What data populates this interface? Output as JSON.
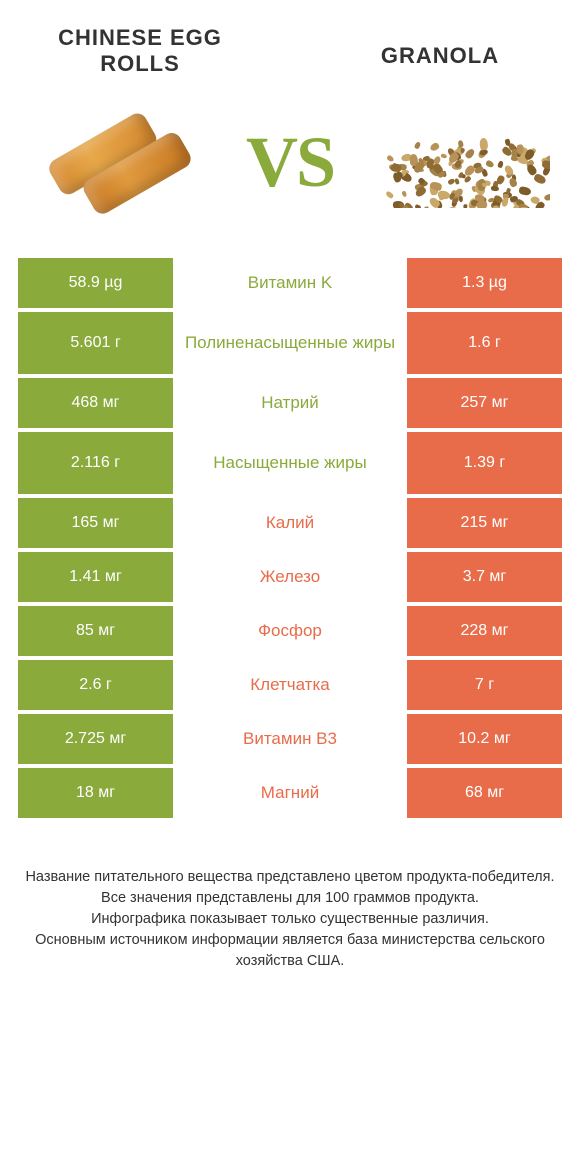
{
  "colors": {
    "green": "#8aaa3b",
    "orange": "#e86c4a",
    "text": "#333333",
    "bg": "#ffffff"
  },
  "header": {
    "left_title": "CHINESE EGG ROLLS",
    "right_title": "GRANOLA",
    "vs": "VS"
  },
  "rows": [
    {
      "left": "58.9 µg",
      "mid": "Витамин K",
      "right": "1.3 µg",
      "winner": "left",
      "tall": false
    },
    {
      "left": "5.601 г",
      "mid": "Полиненасыщенные жиры",
      "right": "1.6 г",
      "winner": "left",
      "tall": true
    },
    {
      "left": "468 мг",
      "mid": "Натрий",
      "right": "257 мг",
      "winner": "left",
      "tall": false
    },
    {
      "left": "2.116 г",
      "mid": "Насыщенные жиры",
      "right": "1.39 г",
      "winner": "left",
      "tall": true
    },
    {
      "left": "165 мг",
      "mid": "Калий",
      "right": "215 мг",
      "winner": "right",
      "tall": false
    },
    {
      "left": "1.41 мг",
      "mid": "Железо",
      "right": "3.7 мг",
      "winner": "right",
      "tall": false
    },
    {
      "left": "85 мг",
      "mid": "Фосфор",
      "right": "228 мг",
      "winner": "right",
      "tall": false
    },
    {
      "left": "2.6 г",
      "mid": "Клетчатка",
      "right": "7 г",
      "winner": "right",
      "tall": false
    },
    {
      "left": "2.725 мг",
      "mid": "Витамин B3",
      "right": "10.2 мг",
      "winner": "right",
      "tall": false
    },
    {
      "left": "18 мг",
      "mid": "Магний",
      "right": "68 мг",
      "winner": "right",
      "tall": false
    }
  ],
  "footer": {
    "line1": "Название питательного вещества представлено цветом продукта-победителя.",
    "line2": "Все значения представлены для 100 граммов продукта.",
    "line3": "Инфографика показывает только существенные различия.",
    "line4": "Основным источником информации является база министерства сельского хозяйства США."
  }
}
